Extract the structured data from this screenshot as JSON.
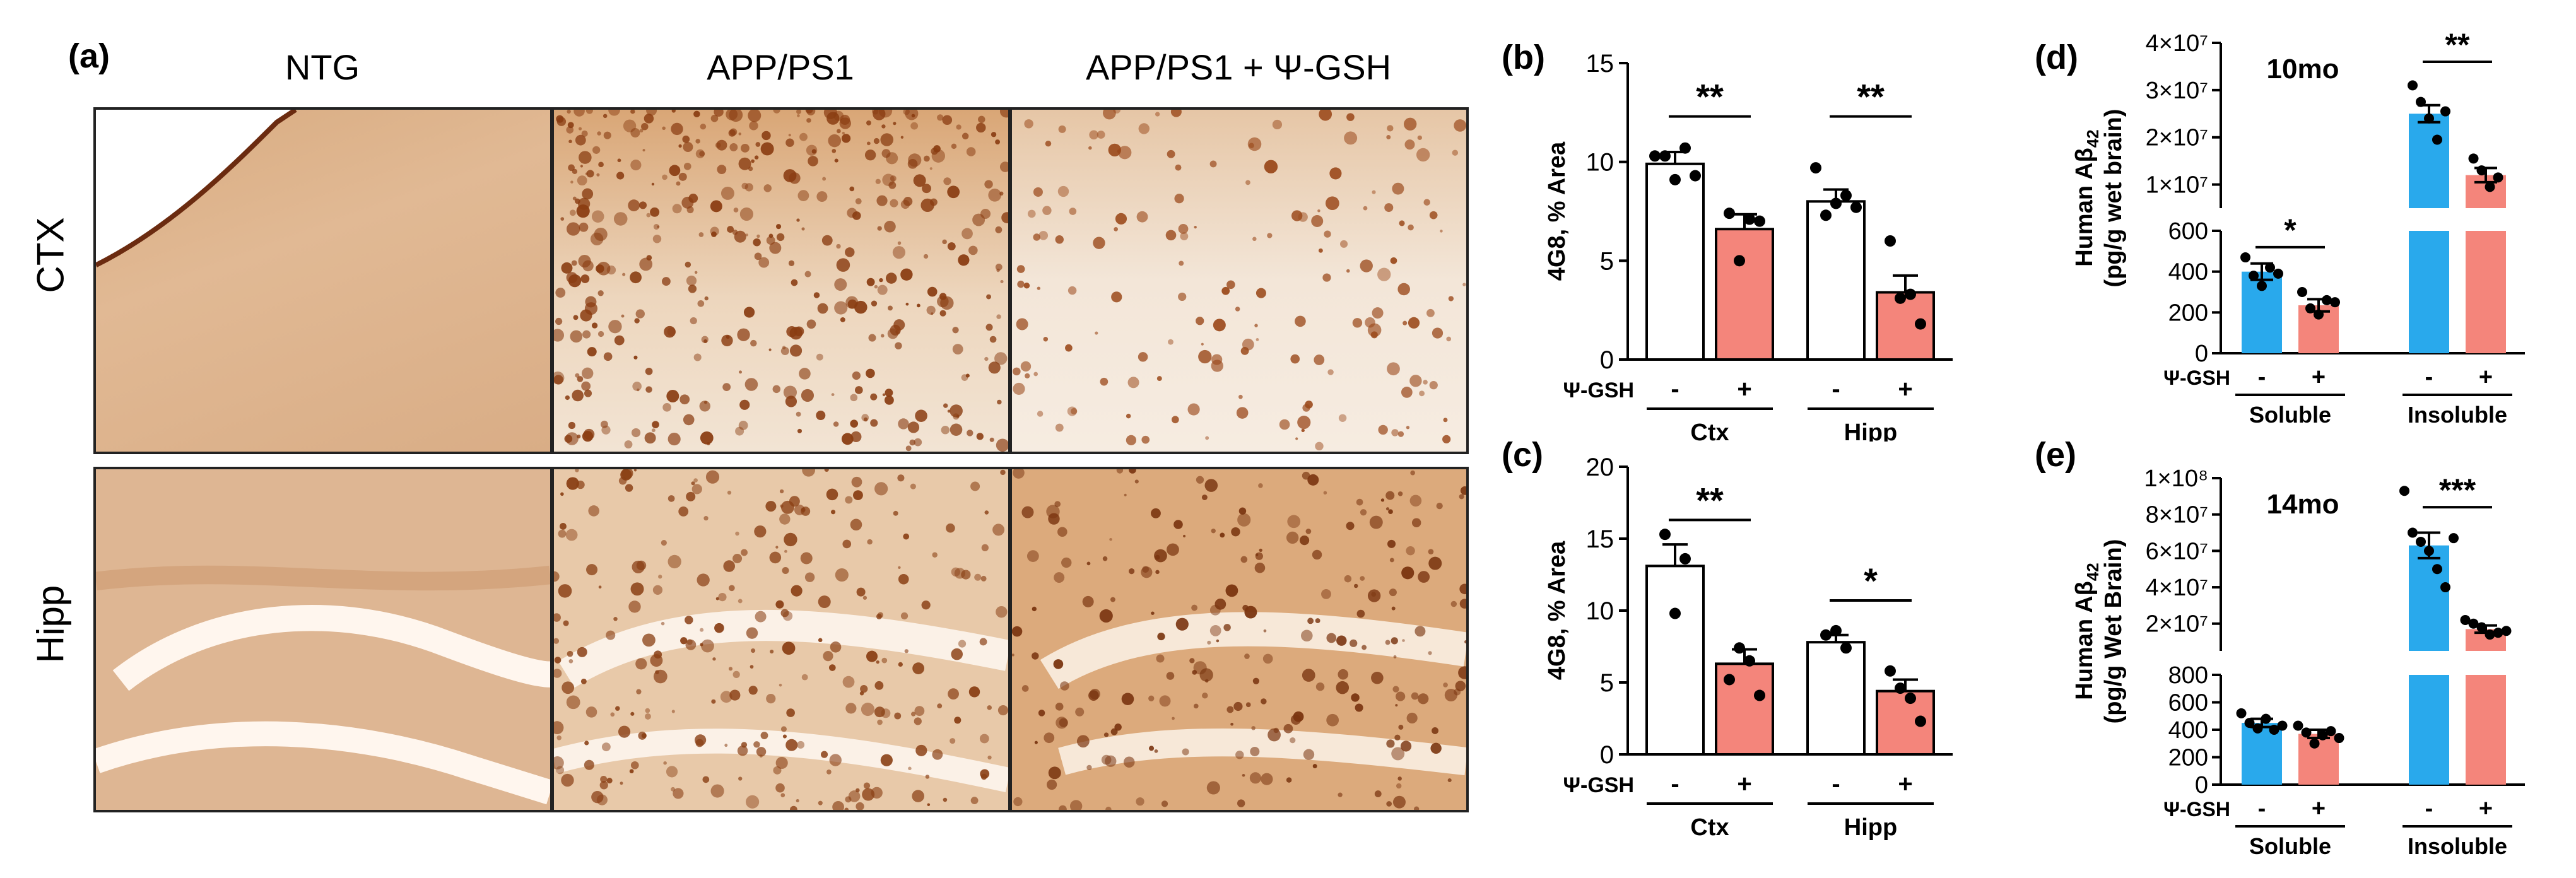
{
  "panel_letters": {
    "a": "(a)",
    "b": "(b)",
    "c": "(c)",
    "d": "(d)",
    "e": "(e)"
  },
  "micrographs": {
    "columns": [
      "NTG",
      "APP/PS1",
      "APP/PS1 + Ψ-GSH"
    ],
    "rows": [
      "CTX",
      "Hipp"
    ]
  },
  "chart_data": [
    {
      "id": "b",
      "type": "bar",
      "ylabel": "4G8, % Area",
      "ylim": [
        0,
        15
      ],
      "yticks": [
        0,
        5,
        10,
        15
      ],
      "treatment_label": "Ψ-GSH",
      "treatment_marks": [
        "-",
        "+",
        "-",
        "+"
      ],
      "groups": [
        "Ctx",
        "Hipp"
      ],
      "bars": [
        {
          "group": "Ctx",
          "treatment": "-",
          "mean": 9.9,
          "sem": 0.6,
          "points": [
            10.3,
            10.3,
            9.1,
            10.7,
            9.3
          ],
          "color": "#ffffff"
        },
        {
          "group": "Ctx",
          "treatment": "+",
          "mean": 6.6,
          "sem": 0.75,
          "points": [
            7.4,
            5.0,
            7.1,
            7.0
          ],
          "color": "#f4857b"
        },
        {
          "group": "Hipp",
          "treatment": "-",
          "mean": 8.0,
          "sem": 0.6,
          "points": [
            9.7,
            7.3,
            7.9,
            8.3,
            7.7
          ],
          "color": "#ffffff"
        },
        {
          "group": "Hipp",
          "treatment": "+",
          "mean": 3.4,
          "sem": 0.85,
          "points": [
            6.0,
            3.1,
            3.3,
            1.8
          ],
          "color": "#f4857b"
        }
      ],
      "significance": [
        {
          "between": [
            0,
            1
          ],
          "label": "**",
          "y": 12.3
        },
        {
          "between": [
            2,
            3
          ],
          "label": "**",
          "y": 12.3
        }
      ]
    },
    {
      "id": "c",
      "type": "bar",
      "ylabel": "4G8, % Area",
      "ylim": [
        0,
        20
      ],
      "yticks": [
        0,
        5,
        10,
        15,
        20
      ],
      "treatment_label": "Ψ-GSH",
      "treatment_marks": [
        "-",
        "+",
        "-",
        "+"
      ],
      "groups": [
        "Ctx",
        "Hipp"
      ],
      "bars": [
        {
          "group": "Ctx",
          "treatment": "-",
          "mean": 13.1,
          "sem": 1.5,
          "points": [
            15.3,
            9.8,
            13.6
          ],
          "color": "#ffffff"
        },
        {
          "group": "Ctx",
          "treatment": "+",
          "mean": 6.3,
          "sem": 1.0,
          "points": [
            5.2,
            7.4,
            6.5,
            4.1
          ],
          "color": "#f4857b"
        },
        {
          "group": "Hipp",
          "treatment": "-",
          "mean": 7.8,
          "sem": 0.5,
          "points": [
            8.3,
            8.6,
            7.4
          ],
          "color": "#ffffff"
        },
        {
          "group": "Hipp",
          "treatment": "+",
          "mean": 4.4,
          "sem": 0.8,
          "points": [
            5.8,
            4.6,
            3.9,
            2.3
          ],
          "color": "#f4857b"
        }
      ],
      "significance": [
        {
          "between": [
            0,
            1
          ],
          "label": "**",
          "y": 16.3
        },
        {
          "between": [
            2,
            3
          ],
          "label": "*",
          "y": 10.7
        }
      ]
    },
    {
      "id": "d",
      "type": "bar",
      "title": "10mo",
      "ylabel_lines": [
        "Human Aβ",
        "(pg/g wet brain)"
      ],
      "ylabel_sub": "42",
      "axis_break": true,
      "lower_ylim": [
        0,
        600
      ],
      "lower_yticks": [
        0,
        200,
        400,
        600
      ],
      "upper_ylim": [
        5000000,
        40000000
      ],
      "upper_yticks": [
        10000000,
        20000000,
        30000000,
        40000000
      ],
      "upper_ytick_labels": [
        "1×10⁷",
        "2×10⁷",
        "3×10⁷",
        "4×10⁷"
      ],
      "treatment_label": "Ψ-GSH",
      "treatment_marks": [
        "-",
        "+",
        "-",
        "+"
      ],
      "groups": [
        "Soluble",
        "Insoluble"
      ],
      "bars": [
        {
          "group": "Soluble",
          "treatment": "-",
          "mean": 400,
          "sem": 40,
          "points": [
            470,
            380,
            330,
            420,
            390
          ],
          "color": "#29a9ec"
        },
        {
          "group": "Soluble",
          "treatment": "+",
          "mean": 235,
          "sem": 30,
          "points": [
            300,
            220,
            190,
            260,
            250
          ],
          "color": "#f4857b"
        },
        {
          "group": "Insoluble",
          "treatment": "-",
          "mean": 25000000,
          "sem": 1800000,
          "points": [
            31000000,
            27500000,
            24000000,
            19500000,
            25500000
          ],
          "color": "#29a9ec"
        },
        {
          "group": "Insoluble",
          "treatment": "+",
          "mean": 12000000,
          "sem": 1500000,
          "points": [
            15500000,
            13000000,
            9500000,
            11500000
          ],
          "color": "#f4857b"
        }
      ],
      "significance": [
        {
          "between": [
            0,
            1
          ],
          "label": "*",
          "y": 520
        },
        {
          "between": [
            2,
            3
          ],
          "label": "**",
          "y": 36000000
        }
      ]
    },
    {
      "id": "e",
      "type": "bar",
      "title": "14mo",
      "ylabel_lines": [
        "Human Aβ",
        "(pg/g Wet Brain)"
      ],
      "ylabel_sub": "42",
      "axis_break": true,
      "lower_ylim": [
        0,
        800
      ],
      "lower_yticks": [
        0,
        200,
        400,
        600,
        800
      ],
      "upper_ylim": [
        5000000,
        100000000
      ],
      "upper_yticks": [
        20000000,
        40000000,
        60000000,
        80000000,
        100000000
      ],
      "upper_ytick_labels": [
        "2×10⁷",
        "4×10⁷",
        "6×10⁷",
        "8×10⁷",
        "1×10⁸"
      ],
      "treatment_label": "Ψ-GSH",
      "treatment_marks": [
        "-",
        "+",
        "-",
        "+"
      ],
      "groups": [
        "Soluble",
        "Insoluble"
      ],
      "bars": [
        {
          "group": "Soluble",
          "treatment": "-",
          "mean": 450,
          "sem": 30,
          "points": [
            520,
            450,
            410,
            480,
            400,
            430
          ],
          "color": "#29a9ec"
        },
        {
          "group": "Soluble",
          "treatment": "+",
          "mean": 370,
          "sem": 30,
          "points": [
            430,
            380,
            300,
            360,
            390,
            340
          ],
          "color": "#f4857b"
        },
        {
          "group": "Insoluble",
          "treatment": "-",
          "mean": 63000000,
          "sem": 7000000,
          "points": [
            93000000,
            70000000,
            65000000,
            60000000,
            50000000,
            40000000,
            67000000
          ],
          "color": "#29a9ec"
        },
        {
          "group": "Insoluble",
          "treatment": "+",
          "mean": 17000000,
          "sem": 2000000,
          "points": [
            22000000,
            20000000,
            18000000,
            14000000,
            15000000,
            16000000
          ],
          "color": "#f4857b"
        }
      ],
      "significance": [
        {
          "between": [
            2,
            3
          ],
          "label": "***",
          "y": 84000000
        }
      ]
    }
  ]
}
